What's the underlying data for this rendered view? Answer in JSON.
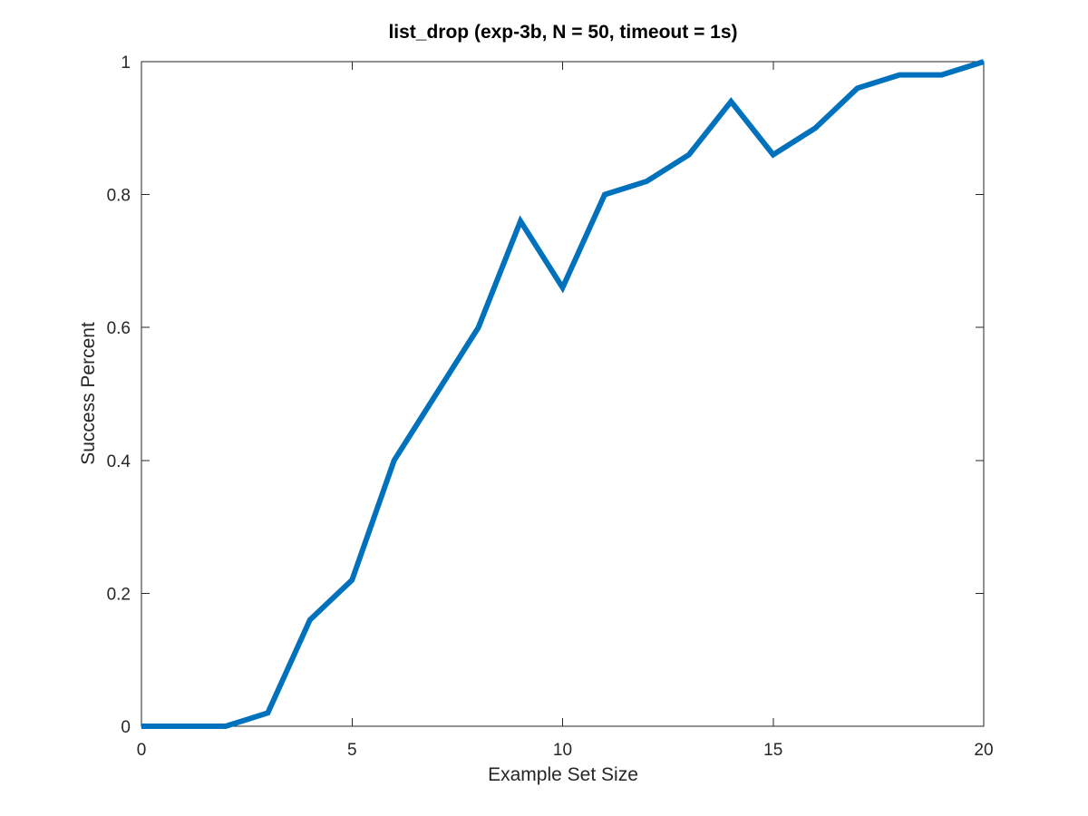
{
  "chart_data": {
    "type": "line",
    "title": "list_drop (exp-3b, N = 50, timeout = 1s)",
    "xlabel": "Example Set Size",
    "ylabel": "Success Percent",
    "xlim": [
      0,
      20
    ],
    "ylim": [
      0,
      1
    ],
    "xticks": [
      0,
      5,
      10,
      15,
      20
    ],
    "yticks": [
      0,
      0.2,
      0.4,
      0.6,
      0.8,
      1
    ],
    "xtick_labels": [
      "0",
      "5",
      "10",
      "15",
      "20"
    ],
    "ytick_labels": [
      "0",
      "0.2",
      "0.4",
      "0.6",
      "0.8",
      "1"
    ],
    "grid": false,
    "legend": "none",
    "series": [
      {
        "color": "#0072bd",
        "x": [
          0,
          1,
          2,
          3,
          4,
          5,
          6,
          7,
          8,
          9,
          10,
          11,
          12,
          13,
          14,
          15,
          16,
          17,
          18,
          19,
          20
        ],
        "y": [
          0,
          0,
          0,
          0.02,
          0.16,
          0.22,
          0.4,
          0.5,
          0.6,
          0.76,
          0.66,
          0.8,
          0.82,
          0.86,
          0.94,
          0.86,
          0.9,
          0.96,
          0.98,
          0.98,
          1.0
        ]
      }
    ]
  }
}
